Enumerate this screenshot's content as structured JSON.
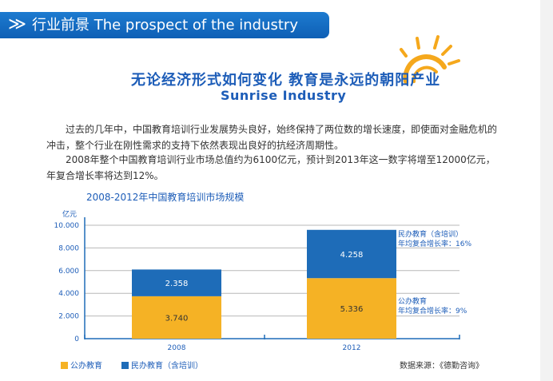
{
  "header": {
    "chevron": "≫",
    "title": "行业前景 The prospect of the industry"
  },
  "slogan": {
    "zh": "无论经济形式如何变化 教育是永远的朝阳产业",
    "en": "Sunrise Industry"
  },
  "paragraphs": [
    "过去的几年中，中国教育培训行业发展势头良好，始终保持了两位数的增长速度，即使面对金融危机的冲击，整个行业在刚性需求的支持下依然表现出良好的抗经济周期性。",
    "2008年整个中国教育培训行业市场总值约为6100亿元，预计到2013年这一数字将增至12000亿元，年复合增长率将达到12%。"
  ],
  "colors": {
    "brand_blue": "#1d5db8",
    "public_edu": "#f5b225",
    "private_edu": "#1e6cb8",
    "sun": "#f5a81c"
  },
  "chart_data": {
    "type": "bar",
    "stacked": true,
    "title": "2008-2012年中国教育培训市场规模",
    "ylabel": "亿元",
    "ylim": [
      0,
      10000
    ],
    "y_ticks": [
      "0",
      "2.000",
      "4.000",
      "6.000",
      "8.000",
      "10.000"
    ],
    "categories": [
      "2008",
      "2012"
    ],
    "series": [
      {
        "name": "公办教育",
        "values": [
          3740,
          5336
        ],
        "labels": [
          "3.740",
          "5.336"
        ]
      },
      {
        "name": "民办教育（含培训）",
        "values": [
          2358,
          4258
        ],
        "labels": [
          "2.358",
          "4.258"
        ]
      }
    ],
    "annotations": [
      {
        "line1": "民办教育（含培训）",
        "line2": "年均复合增长率：16%"
      },
      {
        "line1": "公办教育",
        "line2": "年均复合增长率：9%"
      }
    ],
    "grid": true,
    "legend": "bottom-left",
    "source": "数据来源：《德勤咨询》"
  }
}
